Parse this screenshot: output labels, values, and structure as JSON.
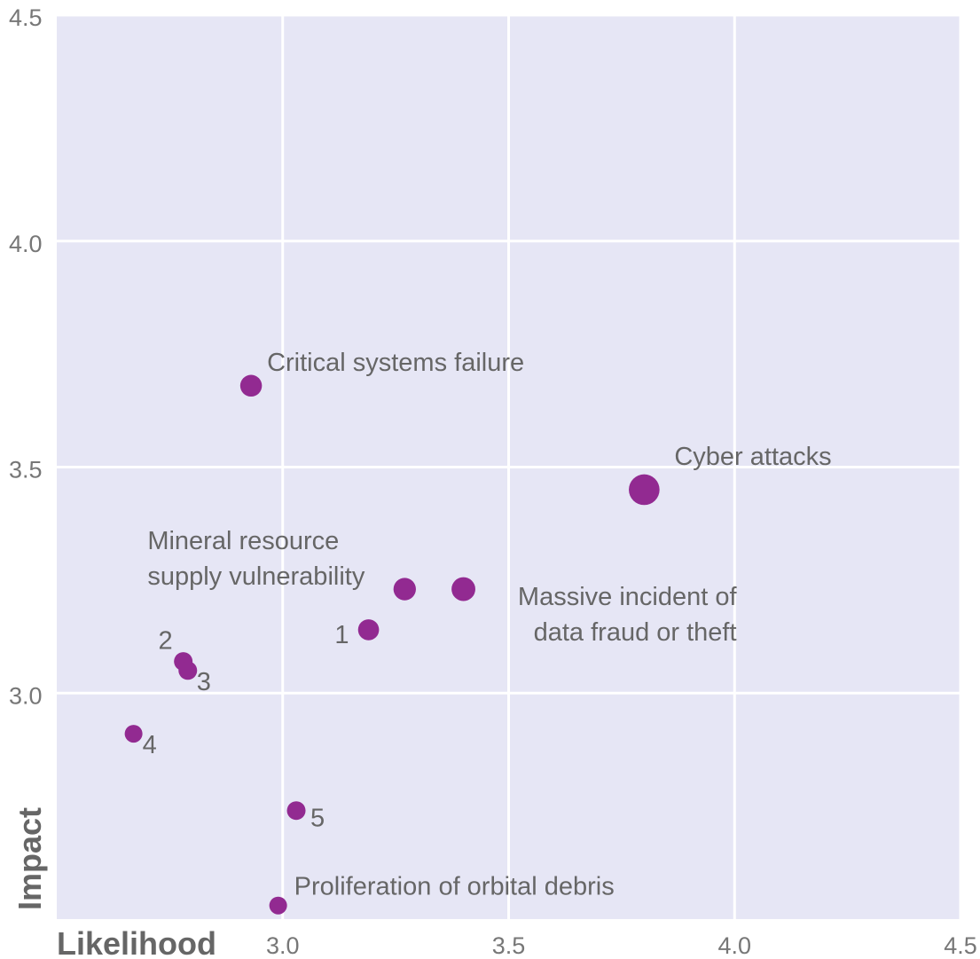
{
  "chart_data": {
    "type": "scatter",
    "title": "",
    "xlabel": "Likelihood",
    "ylabel": "Impact",
    "xlim": [
      2.5,
      4.5
    ],
    "ylim": [
      2.5,
      4.5
    ],
    "x_ticks": [
      "3.0",
      "3.5",
      "4.0",
      "4.5"
    ],
    "y_ticks": [
      "3.0",
      "3.5",
      "4.0",
      "4.5"
    ],
    "grid": true,
    "colors": {
      "background": "#e6e6f5",
      "grid": "#ffffff",
      "point": "#922a91"
    },
    "points": [
      {
        "label": "Cyber attacks",
        "x": 3.8,
        "y": 3.45,
        "size": 3
      },
      {
        "label": "Critical systems failure",
        "x": 2.93,
        "y": 3.68,
        "size": 1.5
      },
      {
        "label": "Massive incident of\ndata fraud or theft",
        "x": 3.4,
        "y": 3.23,
        "size": 1.8
      },
      {
        "label": "Mineral resource\nsupply vulnerability",
        "x": 3.27,
        "y": 3.23,
        "size": 1.6
      },
      {
        "label": "1",
        "x": 3.19,
        "y": 3.14,
        "size": 1.4
      },
      {
        "label": "2",
        "x": 2.78,
        "y": 3.07,
        "size": 1.1
      },
      {
        "label": "3",
        "x": 2.79,
        "y": 3.05,
        "size": 1.1
      },
      {
        "label": "4",
        "x": 2.67,
        "y": 2.91,
        "size": 1.0
      },
      {
        "label": "5",
        "x": 3.03,
        "y": 2.74,
        "size": 1.1
      },
      {
        "label": "Proliferation of orbital debris",
        "x": 2.99,
        "y": 2.53,
        "size": 1.0
      }
    ]
  }
}
